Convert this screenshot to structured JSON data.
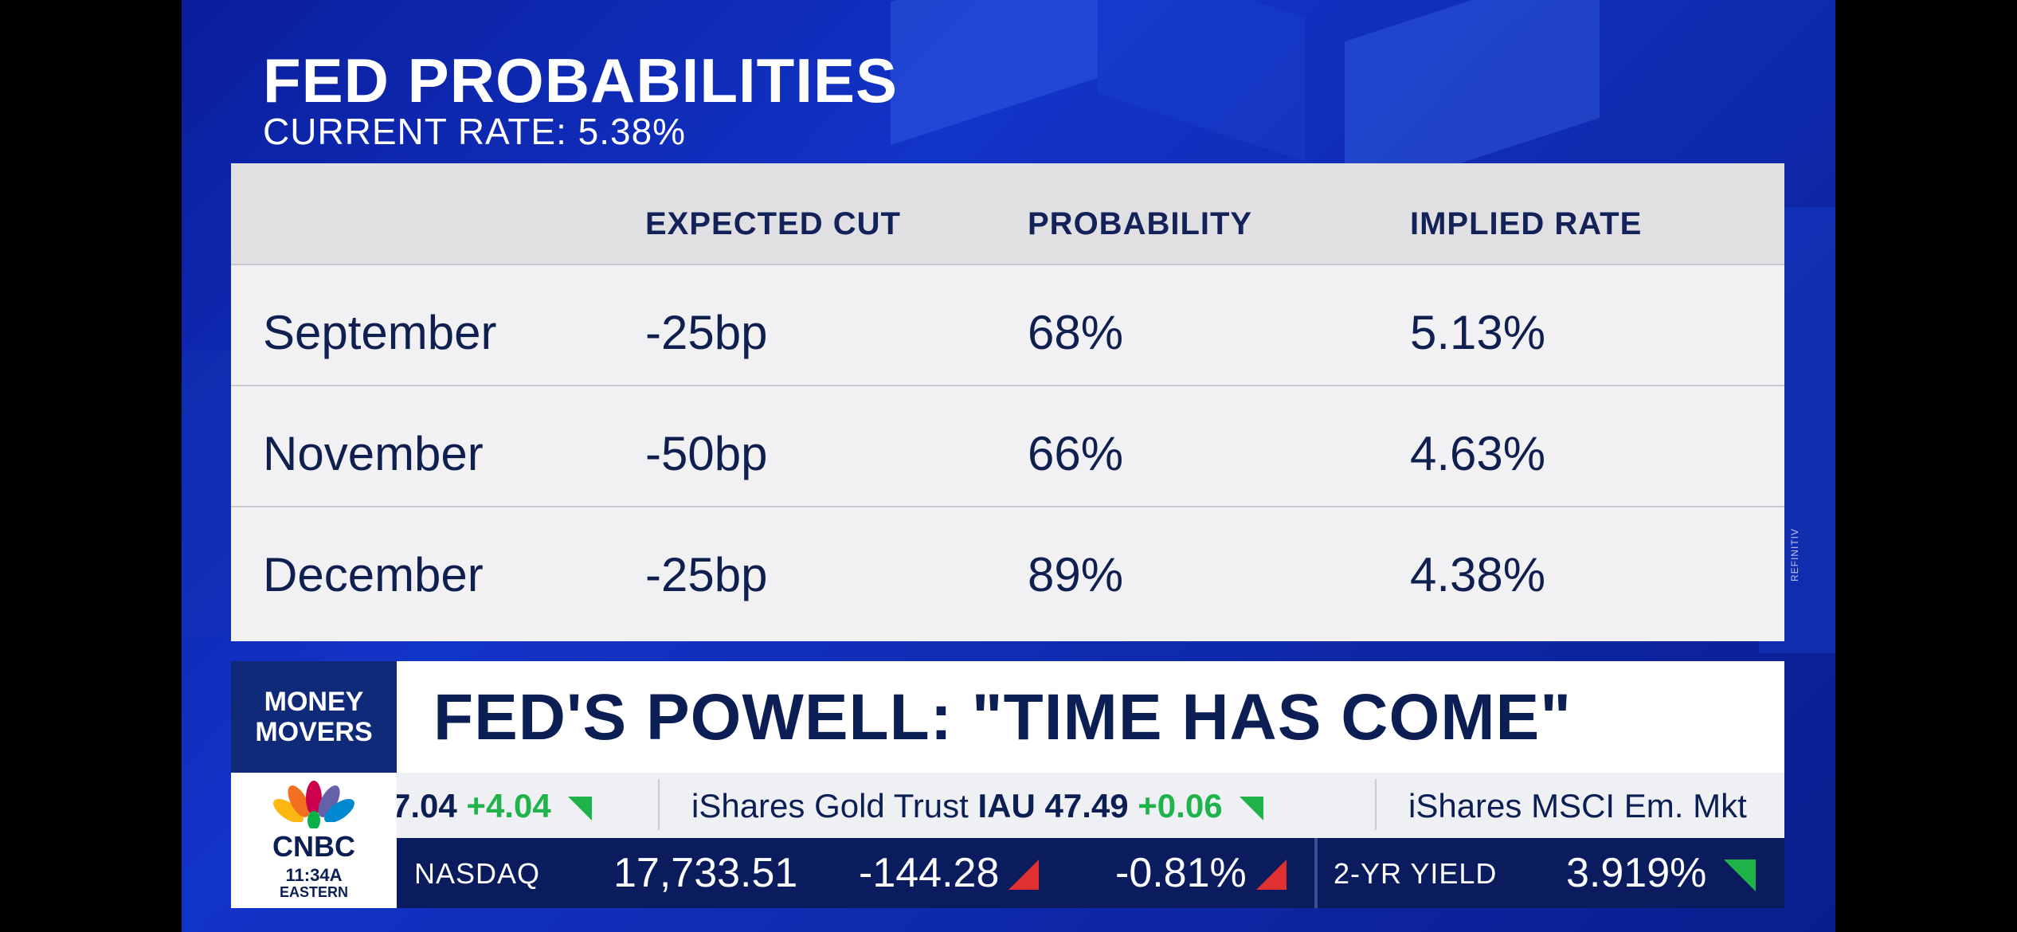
{
  "header": {
    "title": "FED PROBABILITIES",
    "subtitle": "CURRENT RATE: 5.38%"
  },
  "table": {
    "columns": [
      "",
      "EXPECTED CUT",
      "PROBABILITY",
      "IMPLIED RATE"
    ],
    "rows": [
      [
        "September",
        "-25bp",
        "68%",
        "5.13%"
      ],
      [
        "November",
        "-50bp",
        "66%",
        "4.63%"
      ],
      [
        "December",
        "-25bp",
        "89%",
        "4.38%"
      ]
    ]
  },
  "source_credit": "REFINITIV",
  "lower_third": {
    "show_line1": "MONEY",
    "show_line2": "MOVERS",
    "headline": "FED'S POWELL: \"TIME HAS COME\""
  },
  "network": {
    "logo_text": "CNBC",
    "time": "11:34A",
    "timezone": "EASTERN"
  },
  "ticker_top": [
    {
      "name": "",
      "value": "7.04",
      "change": "+4.04",
      "direction": "up"
    },
    {
      "name": "iShares Gold Trust",
      "symbol": "IAU",
      "value": "47.49",
      "change": "+0.06",
      "direction": "up"
    },
    {
      "name": "iShares MSCI Em. Mkt",
      "symbol": "",
      "value": "",
      "change": "",
      "direction": ""
    }
  ],
  "ticker_bottom": {
    "index_name": "NASDAQ",
    "index_value": "17,733.51",
    "index_change": "-144.28",
    "index_pct": "-0.81%",
    "index_direction": "down",
    "yield_name": "2-YR YIELD",
    "yield_value": "3.919%",
    "yield_direction": "down"
  },
  "colors": {
    "background_blue": "#1234c8",
    "table_text": "#0f1f4f",
    "up_green": "#1fb34a",
    "down_red": "#e03030",
    "ticker_navy": "#0a1c5e"
  }
}
